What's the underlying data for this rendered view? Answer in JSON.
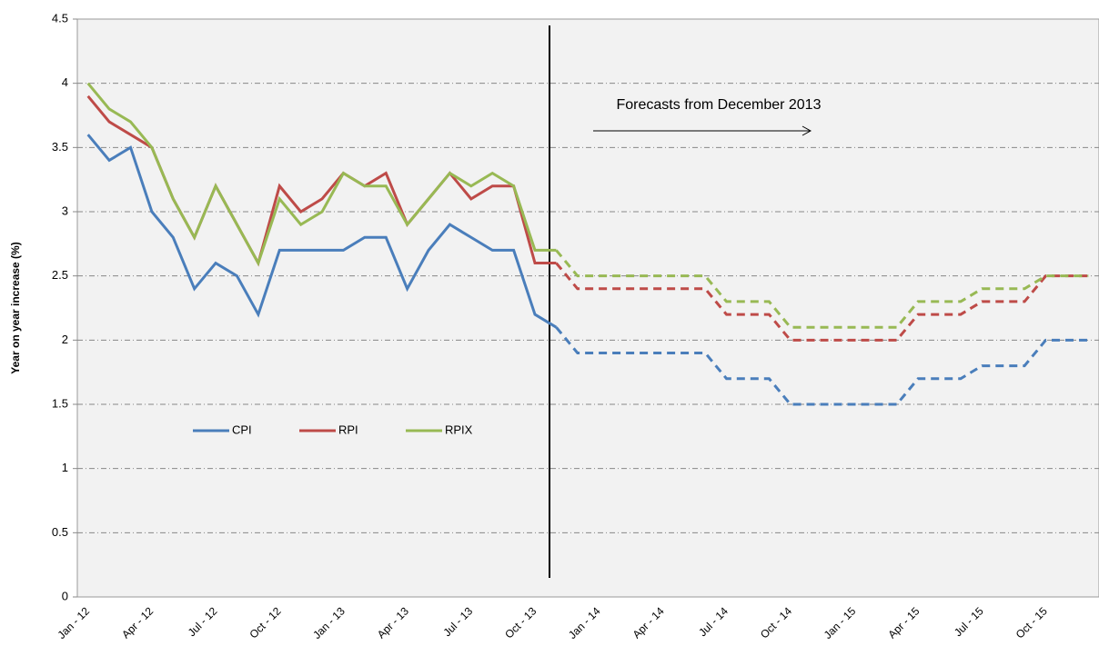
{
  "chart_data": {
    "type": "line",
    "y_label": "Year on year increase (%)",
    "annotation": "Forecasts from December 2013",
    "categories": [
      "Jan - 12",
      null,
      null,
      "Apr - 12",
      null,
      null,
      "Jul - 12",
      null,
      null,
      "Oct - 12",
      null,
      null,
      "Jan - 13",
      null,
      null,
      "Apr - 13",
      null,
      null,
      "Jul - 13",
      null,
      null,
      "Oct - 13",
      null,
      null,
      "Jan - 14",
      null,
      null,
      "Apr - 14",
      null,
      null,
      "Jul - 14",
      null,
      null,
      "Oct - 14",
      null,
      null,
      "Jan - 15",
      null,
      null,
      "Apr - 15",
      null,
      null,
      "Jul - 15",
      null,
      null,
      "Oct - 15",
      null,
      null
    ],
    "series": [
      {
        "name": "CPI",
        "color": "#4a7ebb",
        "values": [
          3.6,
          3.4,
          3.5,
          3.0,
          2.8,
          2.4,
          2.6,
          2.5,
          2.2,
          2.7,
          2.7,
          2.7,
          2.7,
          2.8,
          2.8,
          2.4,
          2.7,
          2.9,
          2.8,
          2.7,
          2.7,
          2.2,
          2.1,
          null,
          null,
          null,
          null,
          null,
          null,
          null,
          null,
          null,
          null,
          null,
          null,
          null,
          null,
          null,
          null,
          null,
          null,
          null,
          null,
          null,
          null,
          null,
          null,
          null
        ],
        "forecast_values": [
          null,
          null,
          null,
          null,
          null,
          null,
          null,
          null,
          null,
          null,
          null,
          null,
          null,
          null,
          null,
          null,
          null,
          null,
          null,
          null,
          null,
          null,
          2.1,
          1.9,
          1.9,
          1.9,
          1.9,
          1.9,
          1.9,
          1.9,
          1.7,
          1.7,
          1.7,
          1.5,
          1.5,
          1.5,
          1.5,
          1.5,
          1.5,
          1.7,
          1.7,
          1.7,
          1.8,
          1.8,
          1.8,
          2.0,
          2.0,
          2.0
        ]
      },
      {
        "name": "RPI",
        "color": "#be4b48",
        "values": [
          3.9,
          3.7,
          3.6,
          3.5,
          3.1,
          2.8,
          3.2,
          2.9,
          2.6,
          3.2,
          3.0,
          3.1,
          3.3,
          3.2,
          3.3,
          2.9,
          3.1,
          3.3,
          3.1,
          3.2,
          3.2,
          2.6,
          2.6,
          null,
          null,
          null,
          null,
          null,
          null,
          null,
          null,
          null,
          null,
          null,
          null,
          null,
          null,
          null,
          null,
          null,
          null,
          null,
          null,
          null,
          null,
          null,
          null,
          null
        ],
        "forecast_values": [
          null,
          null,
          null,
          null,
          null,
          null,
          null,
          null,
          null,
          null,
          null,
          null,
          null,
          null,
          null,
          null,
          null,
          null,
          null,
          null,
          null,
          null,
          2.6,
          2.4,
          2.4,
          2.4,
          2.4,
          2.4,
          2.4,
          2.4,
          2.2,
          2.2,
          2.2,
          2.0,
          2.0,
          2.0,
          2.0,
          2.0,
          2.0,
          2.2,
          2.2,
          2.2,
          2.3,
          2.3,
          2.3,
          2.5,
          2.5,
          2.5
        ]
      },
      {
        "name": "RPIX",
        "color": "#98b954",
        "values": [
          4.0,
          3.8,
          3.7,
          3.5,
          3.1,
          2.8,
          3.2,
          2.9,
          2.6,
          3.1,
          2.9,
          3.0,
          3.3,
          3.2,
          3.2,
          2.9,
          3.1,
          3.3,
          3.2,
          3.3,
          3.2,
          2.7,
          2.7,
          null,
          null,
          null,
          null,
          null,
          null,
          null,
          null,
          null,
          null,
          null,
          null,
          null,
          null,
          null,
          null,
          null,
          null,
          null,
          null,
          null,
          null,
          null,
          null,
          null
        ],
        "forecast_values": [
          null,
          null,
          null,
          null,
          null,
          null,
          null,
          null,
          null,
          null,
          null,
          null,
          null,
          null,
          null,
          null,
          null,
          null,
          null,
          null,
          null,
          null,
          2.7,
          2.5,
          2.5,
          2.5,
          2.5,
          2.5,
          2.5,
          2.5,
          2.3,
          2.3,
          2.3,
          2.1,
          2.1,
          2.1,
          2.1,
          2.1,
          2.1,
          2.3,
          2.3,
          2.3,
          2.4,
          2.4,
          2.4,
          2.5,
          2.5,
          2.5
        ]
      }
    ],
    "ylim": [
      0,
      4.5
    ],
    "yticks": [
      0,
      0.5,
      1,
      1.5,
      2,
      2.5,
      3,
      3.5,
      4,
      4.5
    ],
    "grid": true
  }
}
